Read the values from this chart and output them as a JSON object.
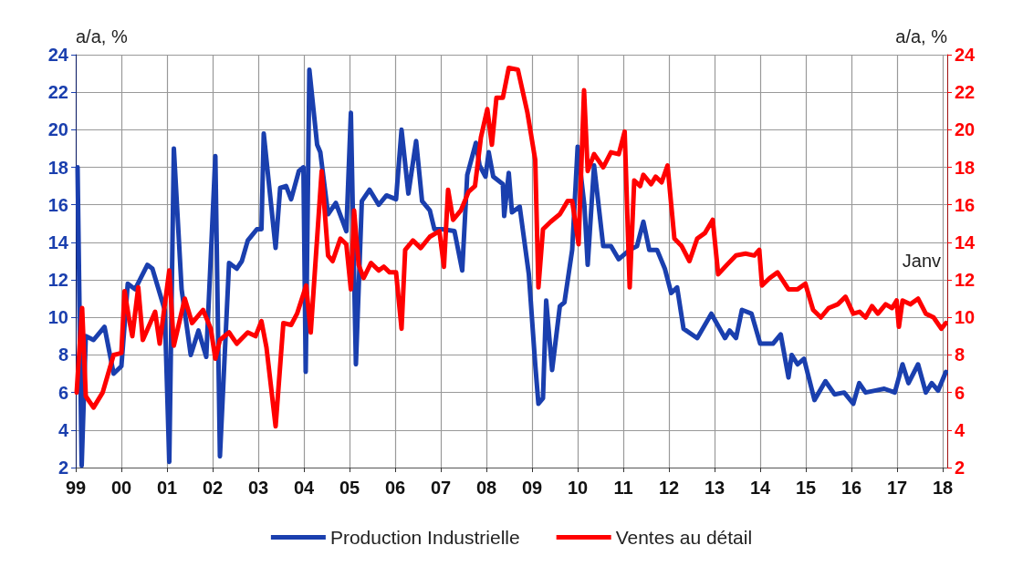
{
  "chart_data": {
    "type": "line",
    "ylabel": "a/a, %",
    "y2label": "a/a, %",
    "annotations": [
      "Janv"
    ],
    "xlim": [
      1999,
      2018.1
    ],
    "xticks": [
      {
        "value": 1999,
        "label": "99"
      },
      {
        "value": 2000,
        "label": "00"
      },
      {
        "value": 2001,
        "label": "01"
      },
      {
        "value": 2002,
        "label": "02"
      },
      {
        "value": 2003,
        "label": "03"
      },
      {
        "value": 2004,
        "label": "04"
      },
      {
        "value": 2005,
        "label": "05"
      },
      {
        "value": 2006,
        "label": "06"
      },
      {
        "value": 2007,
        "label": "07"
      },
      {
        "value": 2008,
        "label": "08"
      },
      {
        "value": 2009,
        "label": "09"
      },
      {
        "value": 2010,
        "label": "10"
      },
      {
        "value": 2011,
        "label": "11"
      },
      {
        "value": 2012,
        "label": "12"
      },
      {
        "value": 2013,
        "label": "13"
      },
      {
        "value": 2014,
        "label": "14"
      },
      {
        "value": 2015,
        "label": "15"
      },
      {
        "value": 2016,
        "label": "16"
      },
      {
        "value": 2017,
        "label": "17"
      },
      {
        "value": 2018,
        "label": "18"
      }
    ],
    "ylim": [
      2,
      24
    ],
    "yticks": [
      2,
      4,
      6,
      8,
      10,
      12,
      14,
      16,
      18,
      20,
      22,
      24
    ],
    "y2lim": [
      2,
      24
    ],
    "y2ticks": [
      2,
      4,
      6,
      8,
      10,
      12,
      14,
      16,
      18,
      20,
      22,
      24
    ],
    "grid": true,
    "legend": "bottom",
    "marker": "none",
    "line_style": "solid",
    "series": [
      {
        "name": "Production Industrielle",
        "color": "#1a3fae",
        "x": [
          1999.04,
          1999.13,
          1999.22,
          1999.39,
          1999.63,
          1999.83,
          2000.0,
          2000.14,
          2000.3,
          2000.57,
          2000.68,
          2000.95,
          2001.05,
          2001.15,
          2001.32,
          2001.52,
          2001.69,
          2001.86,
          2002.06,
          2002.16,
          2002.36,
          2002.53,
          2002.64,
          2002.77,
          2002.97,
          2003.07,
          2003.12,
          2003.38,
          2003.48,
          2003.61,
          2003.72,
          2003.89,
          2003.99,
          2004.04,
          2004.12,
          2004.29,
          2004.36,
          2004.53,
          2004.7,
          2004.93,
          2005.03,
          2005.14,
          2005.27,
          2005.44,
          2005.64,
          2005.81,
          2006.02,
          2006.14,
          2006.29,
          2006.46,
          2006.59,
          2006.76,
          2006.86,
          2007.03,
          2007.3,
          2007.47,
          2007.58,
          2007.77,
          2007.85,
          2007.98,
          2008.05,
          2008.15,
          2008.36,
          2008.39,
          2008.49,
          2008.56,
          2008.73,
          2008.93,
          2009.07,
          2009.14,
          2009.24,
          2009.31,
          2009.44,
          2009.61,
          2009.71,
          2009.88,
          2010.0,
          2010.15,
          2010.22,
          2010.36,
          2010.56,
          2010.73,
          2010.9,
          2011.14,
          2011.3,
          2011.44,
          2011.57,
          2011.74,
          2011.91,
          2012.05,
          2012.18,
          2012.32,
          2012.62,
          2012.93,
          2013.23,
          2013.33,
          2013.47,
          2013.6,
          2013.81,
          2014.0,
          2014.28,
          2014.45,
          2014.62,
          2014.69,
          2014.82,
          2014.96,
          2015.19,
          2015.43,
          2015.63,
          2015.84,
          2016.04,
          2016.17,
          2016.31,
          2016.51,
          2016.72,
          2016.95,
          2017.12,
          2017.25,
          2017.46,
          2017.63,
          2017.76,
          2017.9,
          2018.07
        ],
        "values": [
          18.0,
          2.1,
          9.0,
          8.8,
          9.5,
          7.0,
          7.4,
          11.8,
          11.5,
          12.8,
          12.6,
          10.4,
          2.3,
          19.0,
          11.5,
          8.0,
          9.3,
          7.9,
          18.6,
          2.6,
          12.9,
          12.6,
          13.0,
          14.1,
          14.7,
          14.7,
          19.8,
          13.7,
          16.9,
          17.0,
          16.3,
          17.8,
          18.0,
          7.1,
          23.2,
          19.2,
          18.8,
          15.5,
          16.1,
          14.6,
          20.9,
          7.5,
          16.2,
          16.8,
          16.0,
          16.5,
          16.3,
          20.0,
          16.6,
          19.4,
          16.2,
          15.7,
          14.7,
          14.7,
          14.6,
          12.5,
          17.6,
          19.3,
          18.1,
          17.5,
          18.8,
          17.5,
          17.1,
          15.4,
          17.7,
          15.6,
          15.9,
          12.3,
          7.5,
          5.4,
          5.7,
          10.9,
          7.2,
          10.6,
          10.8,
          13.6,
          19.1,
          15.9,
          12.8,
          18.1,
          13.8,
          13.8,
          13.1,
          13.6,
          13.8,
          15.1,
          13.6,
          13.6,
          12.6,
          11.3,
          11.6,
          9.4,
          8.9,
          10.2,
          8.9,
          9.3,
          8.9,
          10.4,
          10.2,
          8.6,
          8.6,
          9.1,
          6.8,
          8.0,
          7.5,
          7.8,
          5.6,
          6.6,
          5.9,
          6.0,
          5.4,
          6.5,
          6.0,
          6.1,
          6.2,
          6.0,
          7.5,
          6.5,
          7.5,
          6.0,
          6.5,
          6.1,
          7.1
        ]
      },
      {
        "name": "Ventes au détail",
        "color": "#ff0000",
        "axis": "y2",
        "x": [
          1999.02,
          1999.14,
          1999.22,
          1999.39,
          1999.59,
          1999.83,
          2000.0,
          2000.07,
          2000.17,
          2000.24,
          2000.37,
          2000.47,
          2000.74,
          2000.84,
          2001.05,
          2001.15,
          2001.39,
          2001.55,
          2001.79,
          2001.96,
          2002.06,
          2002.16,
          2002.36,
          2002.53,
          2002.77,
          2002.94,
          2003.07,
          2003.18,
          2003.38,
          2003.55,
          2003.72,
          2003.85,
          2004.05,
          2004.15,
          2004.39,
          2004.53,
          2004.63,
          2004.8,
          2004.93,
          2005.03,
          2005.1,
          2005.2,
          2005.31,
          2005.47,
          2005.64,
          2005.75,
          2005.88,
          2006.02,
          2006.14,
          2006.22,
          2006.39,
          2006.56,
          2006.76,
          2006.97,
          2007.07,
          2007.16,
          2007.27,
          2007.44,
          2007.61,
          2007.75,
          2007.88,
          2008.02,
          2008.12,
          2008.22,
          2008.36,
          2008.49,
          2008.69,
          2008.9,
          2009.07,
          2009.14,
          2009.24,
          2009.41,
          2009.61,
          2009.78,
          2009.88,
          2010.02,
          2010.14,
          2010.22,
          2010.36,
          2010.56,
          2010.73,
          2010.9,
          2011.03,
          2011.14,
          2011.24,
          2011.37,
          2011.44,
          2011.61,
          2011.71,
          2011.84,
          2011.97,
          2012.12,
          2012.28,
          2012.45,
          2012.62,
          2012.79,
          2012.96,
          2013.08,
          2013.27,
          2013.47,
          2013.68,
          2013.87,
          2013.98,
          2014.04,
          2014.21,
          2014.38,
          2014.62,
          2014.82,
          2014.99,
          2015.16,
          2015.33,
          2015.5,
          2015.7,
          2015.87,
          2016.04,
          2016.18,
          2016.31,
          2016.45,
          2016.58,
          2016.75,
          2016.89,
          2016.99,
          2017.04,
          2017.12,
          2017.29,
          2017.46,
          2017.63,
          2017.8,
          2017.97,
          2018.07
        ],
        "values": [
          6.0,
          10.5,
          5.8,
          5.2,
          6.0,
          8.0,
          8.1,
          11.4,
          9.9,
          9.0,
          11.6,
          8.8,
          10.3,
          8.6,
          12.5,
          8.5,
          11.0,
          9.7,
          10.4,
          9.4,
          7.8,
          8.8,
          9.2,
          8.6,
          9.2,
          9.0,
          9.8,
          8.4,
          4.2,
          9.7,
          9.6,
          10.2,
          11.7,
          9.2,
          17.8,
          13.3,
          13.0,
          14.2,
          13.9,
          11.5,
          15.7,
          12.8,
          12.1,
          12.9,
          12.5,
          12.7,
          12.4,
          12.4,
          9.4,
          13.6,
          14.1,
          13.7,
          14.3,
          14.6,
          12.7,
          16.8,
          15.2,
          15.7,
          16.7,
          17.0,
          19.6,
          21.1,
          19.2,
          21.7,
          21.7,
          23.3,
          23.2,
          20.9,
          18.4,
          11.6,
          14.7,
          15.1,
          15.5,
          16.2,
          16.2,
          13.9,
          22.1,
          17.8,
          18.7,
          18.0,
          18.8,
          18.7,
          19.9,
          11.6,
          17.3,
          17.0,
          17.6,
          17.1,
          17.5,
          17.2,
          18.1,
          14.2,
          13.8,
          13.0,
          14.2,
          14.5,
          15.2,
          12.3,
          12.8,
          13.3,
          13.4,
          13.3,
          13.6,
          11.7,
          12.1,
          12.4,
          11.5,
          11.5,
          11.8,
          10.4,
          10.0,
          10.5,
          10.7,
          11.1,
          10.2,
          10.3,
          10.0,
          10.6,
          10.2,
          10.7,
          10.5,
          10.9,
          9.5,
          10.9,
          10.7,
          11.0,
          10.2,
          10.0,
          9.4,
          9.7
        ]
      }
    ]
  }
}
